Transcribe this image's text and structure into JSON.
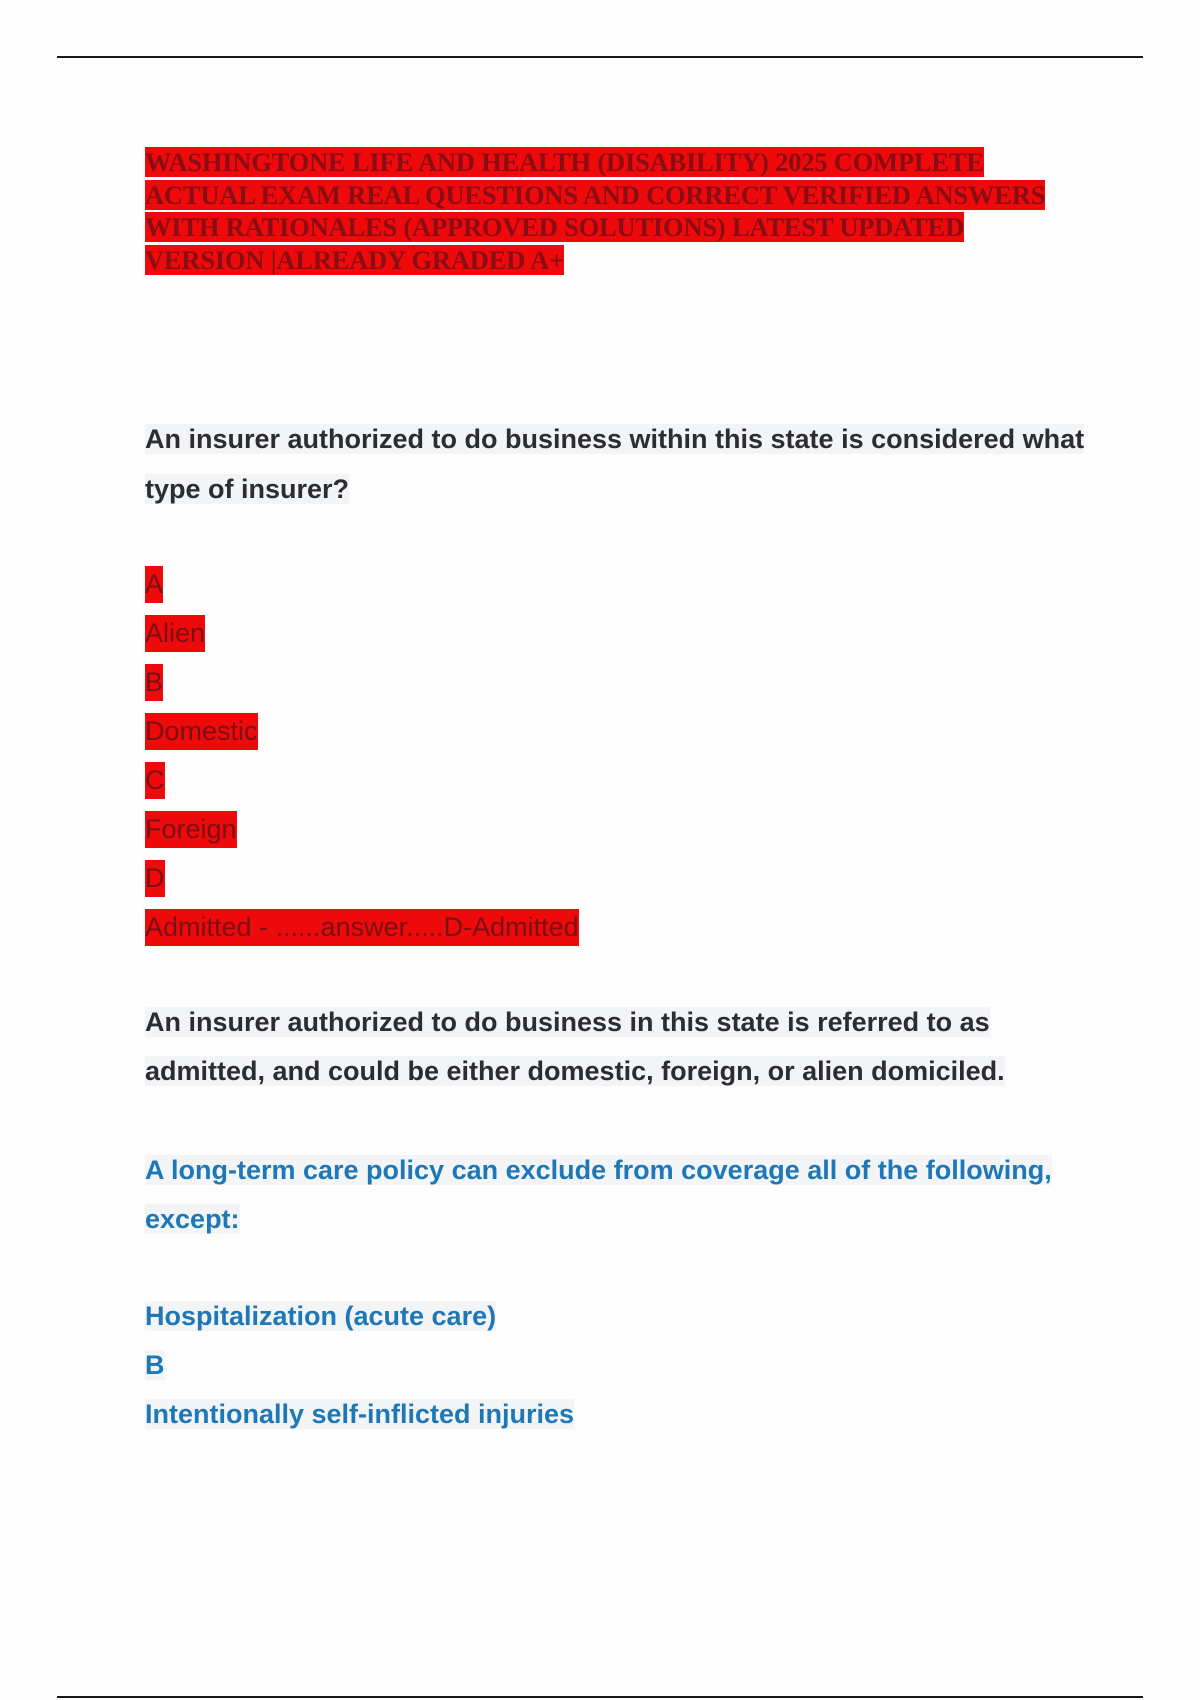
{
  "title": "WASHINGTONE LIFE AND HEALTH (DISABILITY) 2025 COMPLETE ACTUAL EXAM REAL QUESTIONS AND CORRECT VERIFIED ANSWERS WITH RATIONALES (APPROVED SOLUTIONS) LATEST UPDATED VERSION |ALREADY GRADED A+",
  "question1": {
    "text": "An insurer authorized to do business within this state is considered what type of insurer?",
    "options": [
      "A",
      "Alien",
      "B",
      "Domestic",
      "C",
      "Foreign",
      "D",
      "Admitted - ......answer.....D-Admitted"
    ],
    "explanation": "An insurer authorized to do business in this state is referred to as admitted, and could be either domestic, foreign, or alien domiciled."
  },
  "question2": {
    "text": "A long-term care policy can exclude from coverage all of the following, except:",
    "options": [
      "Hospitalization (acute care)",
      "B",
      "Intentionally self-inflicted injuries"
    ]
  },
  "colors": {
    "highlight": "#ee0a0a",
    "question2_text": "#1e78b7",
    "body_text": "#2c2d33"
  }
}
